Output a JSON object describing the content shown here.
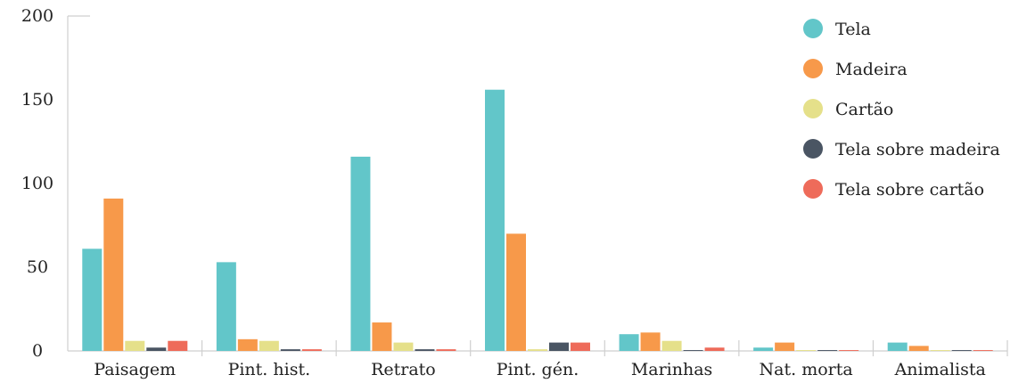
{
  "chart_data": {
    "type": "bar",
    "categories": [
      "Paisagem",
      "Pint. hist.",
      "Retrato",
      "Pint. gén.",
      "Marinhas",
      "Nat. morta",
      "Animalista"
    ],
    "series": [
      {
        "name": "Tela",
        "color": "#62c6c9",
        "values": [
          61,
          53,
          116,
          156,
          10,
          2,
          5
        ]
      },
      {
        "name": "Madeira",
        "color": "#f7994a",
        "values": [
          91,
          7,
          17,
          70,
          11,
          5,
          3
        ]
      },
      {
        "name": "Cartão",
        "color": "#e5e08a",
        "values": [
          6,
          6,
          5,
          1,
          6,
          0.5,
          0.5
        ]
      },
      {
        "name": "Tela sobre madeira",
        "color": "#4a5563",
        "values": [
          2,
          1,
          1,
          5,
          0.5,
          0.5,
          0.5
        ]
      },
      {
        "name": "Tela sobre cartão",
        "color": "#ee6b5a",
        "values": [
          6,
          1,
          1,
          5,
          2,
          0.5,
          0.5
        ]
      }
    ],
    "yticks": [
      0,
      50,
      100,
      150,
      200
    ],
    "ylim": [
      0,
      200
    ],
    "grid": false,
    "legend_position": "top-right"
  }
}
